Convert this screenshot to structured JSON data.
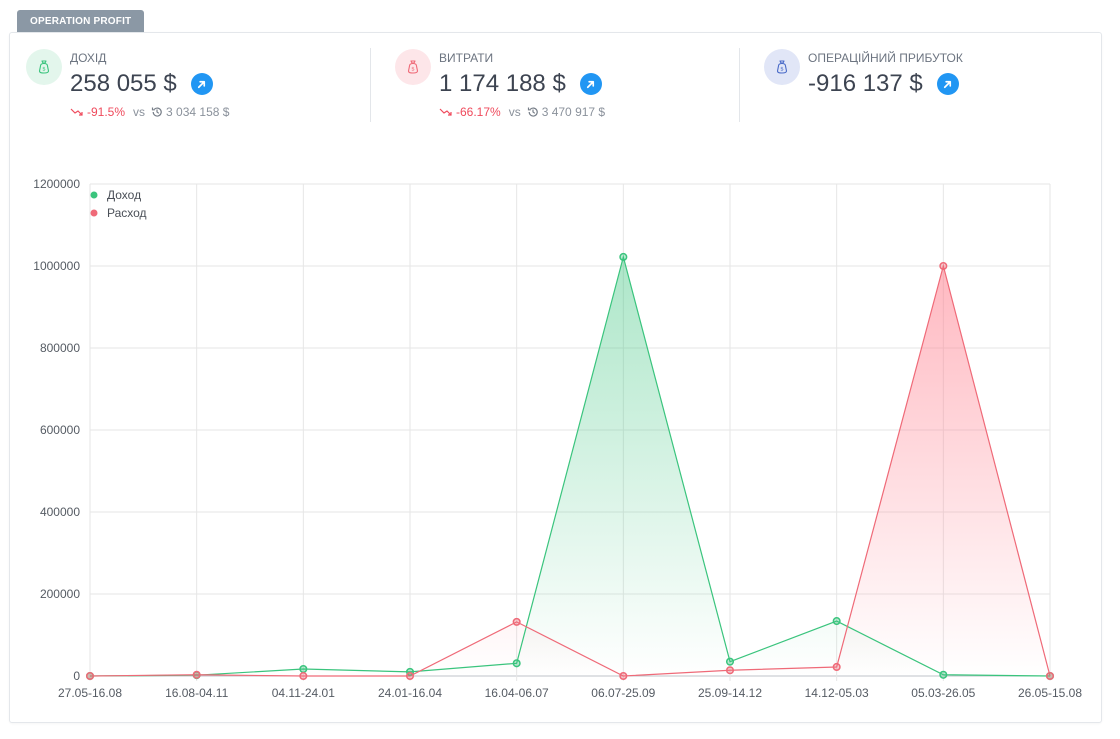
{
  "tab": {
    "label": "OPERATION PROFIT"
  },
  "kpis": [
    {
      "label": "ДОХІД",
      "value": "258 055 $",
      "change": "-91.5%",
      "vs": "vs",
      "previous": "3 034 158 $",
      "icon": "money-bag-icon",
      "color": "#3ac47d"
    },
    {
      "label": "ВИТРАТИ",
      "value": "1 174 188 $",
      "change": "-66.17%",
      "vs": "vs",
      "previous": "3 470 917 $",
      "icon": "money-bag-icon",
      "color": "#ef6a78"
    },
    {
      "label": "ОПЕРАЦІЙНИЙ ПРИБУТОК",
      "value": "-916 137 $",
      "icon": "money-bag-icon",
      "color": "#4a6bc8"
    }
  ],
  "chart_data": {
    "type": "area",
    "categories": [
      "27.05-16.08",
      "16.08-04.11",
      "04.11-24.01",
      "24.01-16.04",
      "16.04-06.07",
      "06.07-25.09",
      "25.09-14.12",
      "14.12-05.03",
      "05.03-26.05",
      "26.05-15.08"
    ],
    "series": [
      {
        "name": "Доход",
        "color": "#3ac47d",
        "values": [
          0,
          2000,
          17000,
          10000,
          31000,
          1022000,
          35000,
          134000,
          3000,
          0
        ]
      },
      {
        "name": "Расход",
        "color": "#ef6a78",
        "values": [
          0,
          3000,
          0,
          0,
          132000,
          0,
          14000,
          22000,
          1000000,
          0
        ]
      }
    ],
    "y_ticks": [
      "1200000",
      "1000000",
      "800000",
      "600000",
      "400000",
      "200000",
      "0"
    ],
    "ylim": [
      0,
      1200000
    ],
    "grid": true,
    "legend": "top-left"
  }
}
